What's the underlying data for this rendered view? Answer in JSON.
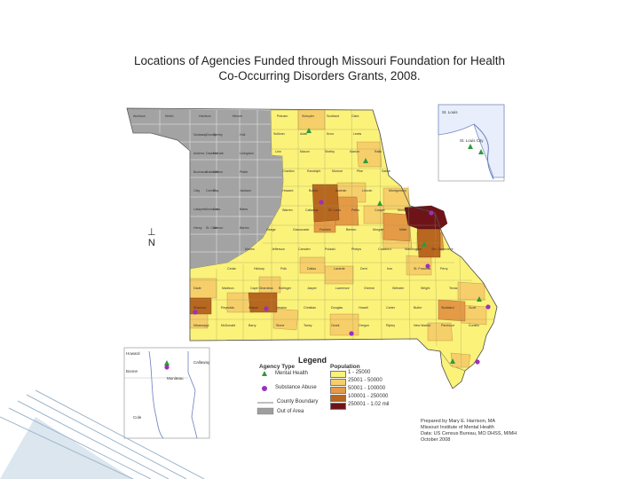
{
  "title": {
    "line1": "Locations of Agencies Funded through Missouri Foundation for Health",
    "line2": "Co-Occurring Disorders Grants, 2008."
  },
  "north_arrow": {
    "letter": "N"
  },
  "legend": {
    "title": "Legend",
    "agency_heading": "Agency Type",
    "agency_types": [
      {
        "label": "Mental Health",
        "symbol": "green-triangle",
        "color": "#2e9a3a"
      },
      {
        "label": "Substance Abuse",
        "symbol": "purple-dot",
        "color": "#9b2fc0"
      }
    ],
    "boundary_label": "County Boundary",
    "out_of_area_label": "Out of Area",
    "population_heading": "Population",
    "population_classes": [
      {
        "label": "1 - 25000",
        "color": "#fbf27a"
      },
      {
        "label": "25001 - 50000",
        "color": "#f6cf6a"
      },
      {
        "label": "50001 - 100000",
        "color": "#e59a45"
      },
      {
        "label": "100001 - 250000",
        "color": "#b8671f"
      },
      {
        "label": "250001 - 1.02 mil",
        "color": "#6e1418"
      }
    ]
  },
  "credits": [
    "Prepared by Mary E. Harrison, MA",
    "Missouri Institute of Mental Health",
    "Data: US Census Bureau, MO DHSS, MIMH",
    "October 2008"
  ],
  "out_of_area_color": "#9e9e9e",
  "county_labels": [
    {
      "text": "Atchison",
      "group": "gray"
    },
    {
      "text": "Worth",
      "group": "gray"
    },
    {
      "text": "Harrison",
      "group": "gray"
    },
    {
      "text": "Mercer",
      "group": "gray"
    },
    {
      "text": "Nodaway",
      "group": "gray"
    },
    {
      "text": "Gentry",
      "group": "gray"
    },
    {
      "text": "Grundy",
      "group": "gray"
    },
    {
      "text": "Holt",
      "group": "gray"
    },
    {
      "text": "Andrew",
      "group": "gray"
    },
    {
      "text": "DeKalb",
      "group": "gray"
    },
    {
      "text": "Daviess",
      "group": "gray"
    },
    {
      "text": "Livingston",
      "group": "gray"
    },
    {
      "text": "Buchanan",
      "group": "gray"
    },
    {
      "text": "Clinton",
      "group": "gray"
    },
    {
      "text": "Caldwell",
      "group": "gray"
    },
    {
      "text": "Platte",
      "group": "gray"
    },
    {
      "text": "Clay",
      "group": "gray"
    },
    {
      "text": "Ray",
      "group": "gray"
    },
    {
      "text": "Carroll",
      "group": "gray"
    },
    {
      "text": "Jackson",
      "group": "gray"
    },
    {
      "text": "Lafayette",
      "group": "gray"
    },
    {
      "text": "Cass",
      "group": "gray"
    },
    {
      "text": "Johnson",
      "group": "gray"
    },
    {
      "text": "Bates",
      "group": "gray"
    },
    {
      "text": "Henry",
      "group": "gray"
    },
    {
      "text": "Vernon",
      "group": "gray"
    },
    {
      "text": "St. Clair",
      "group": "gray"
    },
    {
      "text": "Barton",
      "group": "gray"
    },
    {
      "text": "Putnam",
      "group": "yellow"
    },
    {
      "text": "Schuyler",
      "group": "yellow"
    },
    {
      "text": "Scotland",
      "group": "yellow"
    },
    {
      "text": "Clark",
      "group": "yellow"
    },
    {
      "text": "Sullivan",
      "group": "yellow"
    },
    {
      "text": "Adair",
      "group": "yellow"
    },
    {
      "text": "Knox",
      "group": "yellow"
    },
    {
      "text": "Lewis",
      "group": "yellow"
    },
    {
      "text": "Linn",
      "group": "yellow"
    },
    {
      "text": "Macon",
      "group": "yellow"
    },
    {
      "text": "Shelby",
      "group": "yellow"
    },
    {
      "text": "Marion",
      "group": "yellow"
    },
    {
      "text": "Ralls",
      "group": "yellow"
    },
    {
      "text": "Chariton",
      "group": "yellow"
    },
    {
      "text": "Randolph",
      "group": "yellow"
    },
    {
      "text": "Monroe",
      "group": "yellow"
    },
    {
      "text": "Pike",
      "group": "yellow"
    },
    {
      "text": "Saline",
      "group": "yellow"
    },
    {
      "text": "Howard",
      "group": "yellow"
    },
    {
      "text": "Boone",
      "group": "yellow"
    },
    {
      "text": "Audrain",
      "group": "yellow"
    },
    {
      "text": "Lincoln",
      "group": "yellow"
    },
    {
      "text": "Montgomery",
      "group": "yellow"
    },
    {
      "text": "Warren",
      "group": "yellow"
    },
    {
      "text": "Callaway",
      "group": "yellow"
    },
    {
      "text": "St. Louis",
      "group": "yellow"
    },
    {
      "text": "Pettis",
      "group": "yellow"
    },
    {
      "text": "Cooper",
      "group": "yellow"
    },
    {
      "text": "Moniteau",
      "group": "yellow"
    },
    {
      "text": "Cole",
      "group": "yellow"
    },
    {
      "text": "Osage",
      "group": "yellow"
    },
    {
      "text": "Gasconade",
      "group": "yellow"
    },
    {
      "text": "Franklin",
      "group": "yellow"
    },
    {
      "text": "Benton",
      "group": "yellow"
    },
    {
      "text": "Morgan",
      "group": "yellow"
    },
    {
      "text": "Miller",
      "group": "yellow"
    },
    {
      "text": "Maries",
      "group": "yellow"
    },
    {
      "text": "Jefferson",
      "group": "yellow"
    },
    {
      "text": "Camden",
      "group": "yellow"
    },
    {
      "text": "Pulaski",
      "group": "yellow"
    },
    {
      "text": "Phelps",
      "group": "yellow"
    },
    {
      "text": "Crawford",
      "group": "yellow"
    },
    {
      "text": "Washington",
      "group": "yellow"
    },
    {
      "text": "Ste. Genevieve",
      "group": "yellow"
    },
    {
      "text": "Cedar",
      "group": "yellow"
    },
    {
      "text": "Hickory",
      "group": "yellow"
    },
    {
      "text": "Polk",
      "group": "yellow"
    },
    {
      "text": "Dallas",
      "group": "yellow"
    },
    {
      "text": "Laclede",
      "group": "yellow"
    },
    {
      "text": "Dent",
      "group": "yellow"
    },
    {
      "text": "Iron",
      "group": "yellow"
    },
    {
      "text": "St. Francois",
      "group": "yellow"
    },
    {
      "text": "Perry",
      "group": "yellow"
    },
    {
      "text": "Dade",
      "group": "yellow"
    },
    {
      "text": "Madison",
      "group": "yellow"
    },
    {
      "text": "Cape Girardeau",
      "group": "yellow"
    },
    {
      "text": "Bollinger",
      "group": "yellow"
    },
    {
      "text": "Jasper",
      "group": "yellow"
    },
    {
      "text": "Lawrence",
      "group": "yellow"
    },
    {
      "text": "Greene",
      "group": "yellow"
    },
    {
      "text": "Webster",
      "group": "yellow"
    },
    {
      "text": "Wright",
      "group": "yellow"
    },
    {
      "text": "Texas",
      "group": "yellow"
    },
    {
      "text": "Shannon",
      "group": "yellow"
    },
    {
      "text": "Reynolds",
      "group": "yellow"
    },
    {
      "text": "Wayne",
      "group": "yellow"
    },
    {
      "text": "Newton",
      "group": "yellow"
    },
    {
      "text": "Christian",
      "group": "yellow"
    },
    {
      "text": "Douglas",
      "group": "yellow"
    },
    {
      "text": "Howell",
      "group": "yellow"
    },
    {
      "text": "Carter",
      "group": "yellow"
    },
    {
      "text": "Butler",
      "group": "yellow"
    },
    {
      "text": "Stoddard",
      "group": "yellow"
    },
    {
      "text": "Scott",
      "group": "yellow"
    },
    {
      "text": "Mississippi",
      "group": "yellow"
    },
    {
      "text": "McDonald",
      "group": "yellow"
    },
    {
      "text": "Barry",
      "group": "yellow"
    },
    {
      "text": "Stone",
      "group": "yellow"
    },
    {
      "text": "Taney",
      "group": "yellow"
    },
    {
      "text": "Ozark",
      "group": "yellow"
    },
    {
      "text": "Oregon",
      "group": "yellow"
    },
    {
      "text": "Ripley",
      "group": "yellow"
    },
    {
      "text": "New Madrid",
      "group": "yellow"
    },
    {
      "text": "Pemiscot",
      "group": "yellow"
    },
    {
      "text": "Dunklin",
      "group": "yellow"
    }
  ],
  "inset_stlouis": {
    "labels": [
      "St. Louis",
      "St. Louis City"
    ]
  },
  "inset_boone": {
    "labels": [
      "Howard",
      "Boone",
      "Moniteau",
      "Callaway",
      "Cole"
    ]
  }
}
